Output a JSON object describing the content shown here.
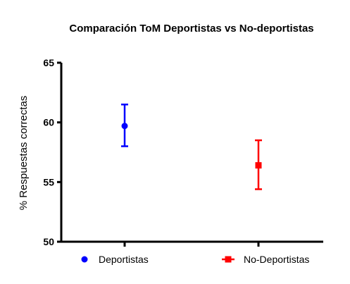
{
  "chart_data": {
    "type": "scatter",
    "title": "Comparación ToM Deportistas vs No-deportistas",
    "xlabel": "",
    "ylabel": "% Respuestas correctas",
    "ylim": [
      50,
      65
    ],
    "yticks": [
      "50",
      "55",
      "60",
      "65"
    ],
    "grid": false,
    "legend_position": "bottom",
    "series": [
      {
        "name": "Deportistas",
        "color": "#0000ff",
        "marker": "circle",
        "mean": 59.7,
        "error_low": 58.0,
        "error_high": 61.5
      },
      {
        "name": "No-Deportistas",
        "color": "#ff0000",
        "marker": "square",
        "mean": 56.4,
        "error_low": 54.4,
        "error_high": 58.5
      }
    ]
  }
}
